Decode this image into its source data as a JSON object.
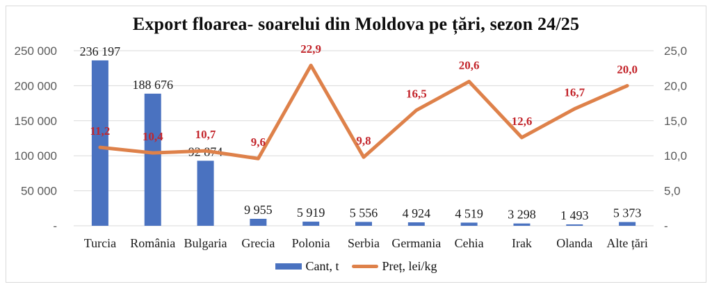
{
  "title": "Export floarea- soarelui din Moldova pe țări, sezon 24/25",
  "legend": {
    "items": [
      {
        "label": "Cant, t",
        "marker": "bar",
        "color": "#4A72C0"
      },
      {
        "label": "Preț, lei/kg",
        "marker": "line",
        "color": "#DE814A"
      }
    ]
  },
  "colors": {
    "bar": "#4A72C0",
    "line": "#DE814A",
    "price_label": "#C3252B",
    "axis_text": "#595959",
    "value_text": "#1a1a1a",
    "gridline": "#d9d9d9",
    "frame_border": "#d9d9d9"
  },
  "chart_data": {
    "type": "combo (bar + line)",
    "title": "Export floarea- soarelui din Moldova pe țări, sezon 24/25",
    "categories": [
      "Turcia",
      "România",
      "Bulgaria",
      "Grecia",
      "Polonia",
      "Serbia",
      "Germania",
      "Cehia",
      "Irak",
      "Olanda",
      "Alte țări"
    ],
    "series": [
      {
        "name": "Cant, t",
        "type": "bar",
        "axis": "left",
        "color": "#4A72C0",
        "values": [
          236197,
          188676,
          92874,
          9955,
          5919,
          5556,
          4924,
          4519,
          3298,
          1493,
          5373
        ],
        "labels": [
          "236 197",
          "188 676",
          "92 874",
          "9 955",
          "5 919",
          "5 556",
          "4 924",
          "4 519",
          "3 298",
          "1 493",
          "5 373"
        ],
        "label_color": "#1a1a1a"
      },
      {
        "name": "Preț, lei/kg",
        "type": "line",
        "axis": "right",
        "color": "#DE814A",
        "values": [
          11.2,
          10.4,
          10.7,
          9.6,
          22.9,
          9.8,
          16.5,
          20.6,
          12.6,
          16.7,
          20.0
        ],
        "labels": [
          "11,2",
          "10,4",
          "10,7",
          "9,6",
          "22,9",
          "9,8",
          "16,5",
          "20,6",
          "12,6",
          "16,7",
          "20,0"
        ],
        "label_color": "#C3252B"
      }
    ],
    "left_axis": {
      "min": 0,
      "max": 250000,
      "ticks": [
        "250 000",
        "200 000",
        "150 000",
        "100 000",
        "50 000",
        "-"
      ]
    },
    "right_axis": {
      "min": 0,
      "max": 25,
      "ticks": [
        "25,0",
        "20,0",
        "15,0",
        "10,0",
        "5,0",
        "-"
      ]
    },
    "grid": true,
    "legend_position": "bottom"
  }
}
